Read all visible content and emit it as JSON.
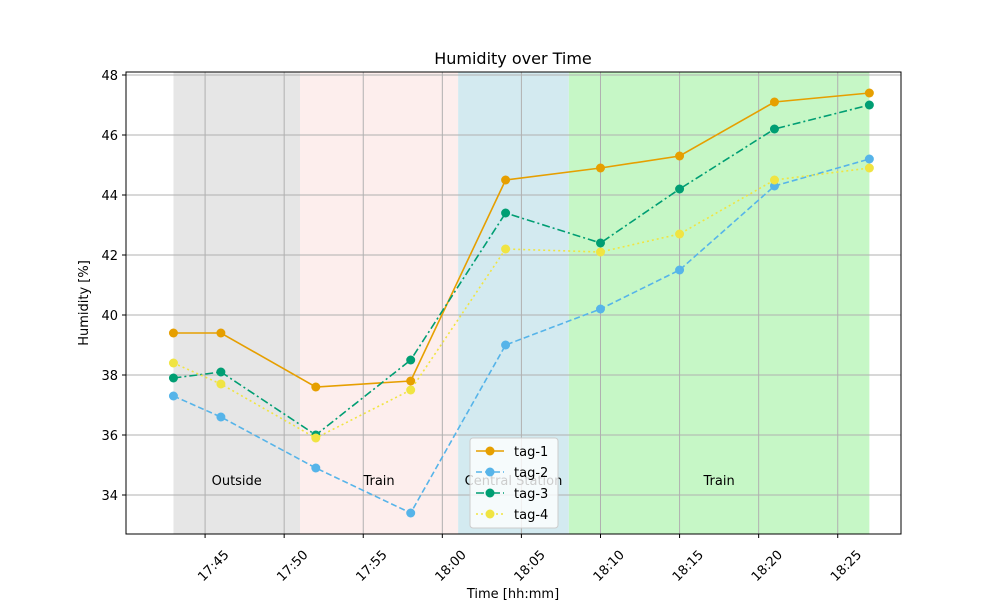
{
  "chart_data": {
    "type": "line",
    "title": "Humidity over Time",
    "xlabel": "Time [hh:mm]",
    "ylabel": "Humidity [%]",
    "x_range": [
      "17:40",
      "18:29"
    ],
    "ylim": [
      32.7,
      48.1
    ],
    "grid": true,
    "legend_position": "bottom-center",
    "x_ticks": [
      "17:45",
      "17:50",
      "17:55",
      "18:00",
      "18:05",
      "18:10",
      "18:15",
      "18:20",
      "18:25"
    ],
    "y_ticks": [
      34,
      36,
      38,
      40,
      42,
      44,
      46,
      48
    ],
    "regions": [
      {
        "label": "Outside",
        "start": "17:43",
        "end": "17:51",
        "color": "#e6e6e6"
      },
      {
        "label": "Train",
        "start": "17:51",
        "end": "18:01",
        "color": "#fdeeed"
      },
      {
        "label": "Central Station",
        "start": "18:01",
        "end": "18:08",
        "color": "#d3eaf0"
      },
      {
        "label": "Train",
        "start": "18:08",
        "end": "18:27",
        "color": "#c6f7c6"
      }
    ],
    "x": [
      "17:43",
      "17:46",
      "17:52",
      "17:58",
      "18:04",
      "18:10",
      "18:15",
      "18:21",
      "18:27"
    ],
    "series": [
      {
        "name": "tag-1",
        "color": "#e69f00",
        "dash": "solid",
        "values": [
          39.4,
          39.4,
          37.6,
          37.8,
          44.5,
          44.9,
          45.3,
          47.1,
          47.4
        ]
      },
      {
        "name": "tag-2",
        "color": "#56b4e9",
        "dash": "dashed",
        "values": [
          37.3,
          36.6,
          34.9,
          33.4,
          39.0,
          40.2,
          41.5,
          44.3,
          45.2
        ]
      },
      {
        "name": "tag-3",
        "color": "#009e73",
        "dash": "dashdot",
        "values": [
          37.9,
          38.1,
          36.0,
          38.5,
          43.4,
          42.4,
          44.2,
          46.2,
          47.0
        ]
      },
      {
        "name": "tag-4",
        "color": "#f0e442",
        "dash": "dotted",
        "values": [
          38.4,
          37.7,
          35.9,
          37.5,
          42.2,
          42.1,
          42.7,
          44.5,
          44.9
        ]
      }
    ]
  }
}
